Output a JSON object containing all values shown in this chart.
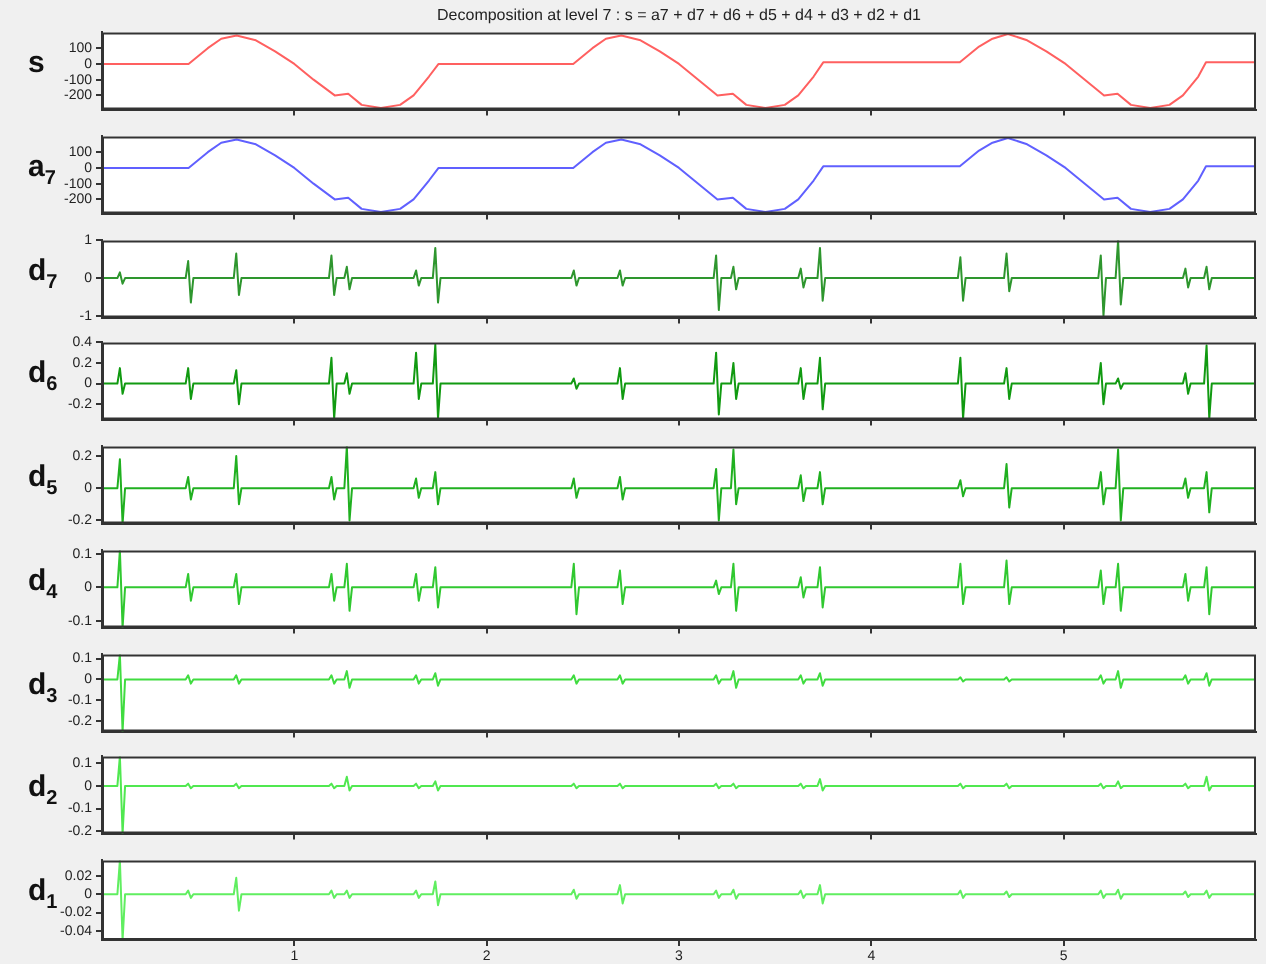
{
  "chart_data": [
    {
      "type": "line",
      "title": "Decomposition at level 7 : s = a7 + d7 + d6 + d5 + d4 + d3 + d2 + d1",
      "ylabel": "s",
      "color": "#ff6060",
      "tick_labels": "y",
      "xlim": [
        0,
        6
      ],
      "xticks": [
        1,
        2,
        3,
        4,
        5
      ],
      "ylim": [
        -290,
        200
      ],
      "yticks": [
        -200,
        -100,
        0,
        100
      ],
      "x": [
        0,
        0.45,
        0.55,
        0.62,
        0.7,
        0.8,
        0.9,
        1.0,
        1.1,
        1.21,
        1.28,
        1.35,
        1.45,
        1.55,
        1.62,
        1.7,
        1.75,
        2.45,
        2.55,
        2.62,
        2.7,
        2.8,
        2.9,
        3.0,
        3.1,
        3.2,
        3.28,
        3.35,
        3.45,
        3.55,
        3.62,
        3.7,
        3.75,
        4.46,
        4.56,
        4.63,
        4.71,
        4.81,
        4.91,
        5.01,
        5.11,
        5.21,
        5.28,
        5.35,
        5.45,
        5.55,
        5.62,
        5.7,
        5.74,
        6
      ],
      "values": [
        0,
        0,
        100,
        160,
        180,
        150,
        80,
        0,
        -100,
        -200,
        -190,
        -260,
        -280,
        -260,
        -200,
        -80,
        0,
        0,
        100,
        160,
        180,
        150,
        80,
        0,
        -100,
        -200,
        -190,
        -260,
        -280,
        -260,
        -200,
        -80,
        10,
        10,
        110,
        160,
        190,
        150,
        80,
        0,
        -100,
        -200,
        -190,
        -260,
        -280,
        -260,
        -200,
        -80,
        10,
        10
      ]
    },
    {
      "type": "line",
      "ylabel": "a$_{7}$",
      "color": "#6060ff",
      "tick_labels": "y",
      "xlim": [
        0,
        6
      ],
      "xticks": [
        1,
        2,
        3,
        4,
        5
      ],
      "ylim": [
        -290,
        200
      ],
      "yticks": [
        -200,
        -100,
        0,
        100
      ],
      "x": [
        0,
        0.45,
        0.55,
        0.62,
        0.7,
        0.8,
        0.9,
        1.0,
        1.1,
        1.21,
        1.28,
        1.35,
        1.45,
        1.55,
        1.62,
        1.7,
        1.75,
        2.45,
        2.55,
        2.62,
        2.7,
        2.8,
        2.9,
        3.0,
        3.1,
        3.2,
        3.28,
        3.35,
        3.45,
        3.55,
        3.62,
        3.7,
        3.75,
        4.46,
        4.56,
        4.63,
        4.71,
        4.81,
        4.91,
        5.01,
        5.11,
        5.21,
        5.28,
        5.35,
        5.45,
        5.55,
        5.62,
        5.7,
        5.74,
        6
      ],
      "values": [
        0,
        0,
        100,
        160,
        180,
        150,
        80,
        0,
        -100,
        -200,
        -190,
        -260,
        -280,
        -260,
        -200,
        -80,
        0,
        0,
        100,
        160,
        180,
        150,
        80,
        0,
        -100,
        -200,
        -190,
        -260,
        -280,
        -260,
        -200,
        -80,
        10,
        10,
        110,
        160,
        190,
        150,
        80,
        0,
        -100,
        -200,
        -190,
        -260,
        -280,
        -260,
        -200,
        -80,
        10,
        10
      ]
    },
    {
      "type": "line",
      "ylabel": "d$_{7}$",
      "color": "#2e962e",
      "tick_labels": "y",
      "xlim": [
        0,
        6
      ],
      "xticks": [
        1,
        2,
        3,
        4,
        5
      ],
      "ylim": [
        -1.05,
        1
      ],
      "yticks": [
        -1,
        0,
        1
      ],
      "x": [
        0,
        0.08,
        0.093,
        0.107,
        0.12,
        0.435,
        0.448,
        0.462,
        0.475,
        0.685,
        0.698,
        0.712,
        0.725,
        1.18,
        1.193,
        1.207,
        1.22,
        1.26,
        1.273,
        1.287,
        1.3,
        1.62,
        1.633,
        1.647,
        1.66,
        1.72,
        1.733,
        1.747,
        1.76,
        2.44,
        2.453,
        2.467,
        2.48,
        2.68,
        2.693,
        2.707,
        2.72,
        3.18,
        3.193,
        3.207,
        3.22,
        3.27,
        3.283,
        3.297,
        3.31,
        3.62,
        3.633,
        3.647,
        3.66,
        3.72,
        3.733,
        3.747,
        3.76,
        4.45,
        4.463,
        4.477,
        4.49,
        4.69,
        4.703,
        4.717,
        4.73,
        5.18,
        5.193,
        5.207,
        5.22,
        5.27,
        5.283,
        5.297,
        5.31,
        5.62,
        5.633,
        5.647,
        5.66,
        5.73,
        5.743,
        5.757,
        5.77,
        6
      ],
      "values": [
        0,
        0,
        0.15,
        -0.15,
        0,
        0,
        0.45,
        -0.65,
        0,
        0,
        0.65,
        -0.45,
        0,
        0,
        0.6,
        -0.45,
        0,
        0,
        0.3,
        -0.3,
        0,
        0,
        0.2,
        -0.2,
        0,
        0,
        0.8,
        -0.65,
        0,
        0,
        0.2,
        -0.2,
        0,
        0,
        0.2,
        -0.2,
        0,
        0,
        0.6,
        -0.85,
        0,
        0,
        0.3,
        -0.3,
        0,
        0,
        0.25,
        -0.25,
        0,
        0,
        0.8,
        -0.6,
        0,
        0,
        0.55,
        -0.6,
        0,
        0,
        0.65,
        -0.35,
        0,
        0,
        0.6,
        -1.0,
        0,
        0,
        1.0,
        -0.7,
        0,
        0,
        0.25,
        -0.25,
        0,
        0,
        0.3,
        -0.3,
        0,
        0
      ]
    },
    {
      "type": "line",
      "ylabel": "d$_{6}$",
      "color": "#119a11",
      "tick_labels": "y",
      "xlim": [
        0,
        6
      ],
      "xticks": [
        1,
        2,
        3,
        4,
        5
      ],
      "ylim": [
        -0.35,
        0.4
      ],
      "yticks": [
        -0.2,
        0,
        0.2,
        0.4
      ],
      "x": [
        0,
        0.08,
        0.093,
        0.107,
        0.12,
        0.435,
        0.448,
        0.462,
        0.475,
        0.685,
        0.698,
        0.712,
        0.725,
        1.18,
        1.193,
        1.207,
        1.22,
        1.26,
        1.273,
        1.287,
        1.3,
        1.62,
        1.633,
        1.647,
        1.66,
        1.72,
        1.733,
        1.747,
        1.76,
        2.44,
        2.453,
        2.467,
        2.48,
        2.68,
        2.693,
        2.707,
        2.72,
        3.18,
        3.193,
        3.207,
        3.22,
        3.27,
        3.283,
        3.297,
        3.31,
        3.62,
        3.633,
        3.647,
        3.66,
        3.72,
        3.733,
        3.747,
        3.76,
        4.45,
        4.463,
        4.477,
        4.49,
        4.69,
        4.703,
        4.717,
        4.73,
        5.18,
        5.193,
        5.207,
        5.22,
        5.27,
        5.283,
        5.297,
        5.31,
        5.62,
        5.633,
        5.647,
        5.66,
        5.73,
        5.743,
        5.757,
        5.77,
        6
      ],
      "values": [
        0,
        0,
        0.15,
        -0.1,
        0,
        0,
        0.15,
        -0.15,
        0,
        0,
        0.13,
        -0.2,
        0,
        0,
        0.25,
        -0.34,
        0,
        0,
        0.1,
        -0.1,
        0,
        0,
        0.3,
        -0.15,
        0,
        0,
        0.38,
        -0.34,
        0,
        0,
        0.05,
        -0.05,
        0,
        0,
        0.15,
        -0.15,
        0,
        0,
        0.3,
        -0.3,
        0,
        0,
        0.2,
        -0.15,
        0,
        0,
        0.15,
        -0.15,
        0,
        0,
        0.25,
        -0.25,
        0,
        0,
        0.25,
        -0.34,
        0,
        0,
        0.15,
        -0.15,
        0,
        0,
        0.2,
        -0.2,
        0,
        0,
        0.05,
        -0.05,
        0,
        0,
        0.1,
        -0.1,
        0,
        0,
        0.37,
        -0.34,
        0,
        0
      ]
    },
    {
      "type": "line",
      "ylabel": "d$_{5}$",
      "color": "#20b020",
      "tick_labels": "y",
      "xlim": [
        0,
        6
      ],
      "xticks": [
        1,
        2,
        3,
        4,
        5
      ],
      "ylim": [
        -0.22,
        0.26
      ],
      "yticks": [
        -0.2,
        0,
        0.2
      ],
      "x": [
        0,
        0.08,
        0.093,
        0.107,
        0.12,
        0.435,
        0.448,
        0.462,
        0.475,
        0.685,
        0.698,
        0.712,
        0.725,
        1.18,
        1.193,
        1.207,
        1.22,
        1.26,
        1.273,
        1.287,
        1.3,
        1.62,
        1.633,
        1.647,
        1.66,
        1.72,
        1.733,
        1.747,
        1.76,
        2.44,
        2.453,
        2.467,
        2.48,
        2.68,
        2.693,
        2.707,
        2.72,
        3.18,
        3.193,
        3.207,
        3.22,
        3.27,
        3.283,
        3.297,
        3.31,
        3.62,
        3.633,
        3.647,
        3.66,
        3.72,
        3.733,
        3.747,
        3.76,
        4.45,
        4.463,
        4.477,
        4.49,
        4.69,
        4.703,
        4.717,
        4.73,
        5.18,
        5.193,
        5.207,
        5.22,
        5.27,
        5.283,
        5.297,
        5.31,
        5.62,
        5.633,
        5.647,
        5.66,
        5.73,
        5.743,
        5.757,
        5.77,
        6
      ],
      "values": [
        0,
        0,
        0.18,
        -0.22,
        0,
        0,
        0.07,
        -0.07,
        0,
        0,
        0.2,
        -0.1,
        0,
        0,
        0.07,
        -0.07,
        0,
        0,
        0.26,
        -0.2,
        0,
        0,
        0.06,
        -0.06,
        0,
        0,
        0.1,
        -0.1,
        0,
        0,
        0.06,
        -0.06,
        0,
        0,
        0.07,
        -0.07,
        0,
        0,
        0.12,
        -0.2,
        0,
        0,
        0.24,
        -0.1,
        0,
        0,
        0.08,
        -0.08,
        0,
        0,
        0.1,
        -0.1,
        0,
        0,
        0.05,
        -0.05,
        0,
        0,
        0.15,
        -0.12,
        0,
        0,
        0.1,
        -0.1,
        0,
        0,
        0.24,
        -0.2,
        0,
        0,
        0.06,
        -0.06,
        0,
        0,
        0.1,
        -0.15,
        0,
        0
      ]
    },
    {
      "type": "line",
      "ylabel": "d$_{4}$",
      "color": "#30c830",
      "tick_labels": "y",
      "xlim": [
        0,
        6
      ],
      "xticks": [
        1,
        2,
        3,
        4,
        5
      ],
      "ylim": [
        -0.12,
        0.11
      ],
      "yticks": [
        -0.1,
        0,
        0.1
      ],
      "x": [
        0,
        0.08,
        0.093,
        0.107,
        0.12,
        0.435,
        0.448,
        0.462,
        0.475,
        0.685,
        0.698,
        0.712,
        0.725,
        1.18,
        1.193,
        1.207,
        1.22,
        1.26,
        1.273,
        1.287,
        1.3,
        1.62,
        1.633,
        1.647,
        1.66,
        1.72,
        1.733,
        1.747,
        1.76,
        2.44,
        2.453,
        2.467,
        2.48,
        2.68,
        2.693,
        2.707,
        2.72,
        3.18,
        3.193,
        3.207,
        3.22,
        3.27,
        3.283,
        3.297,
        3.31,
        3.62,
        3.633,
        3.647,
        3.66,
        3.72,
        3.733,
        3.747,
        3.76,
        4.45,
        4.463,
        4.477,
        4.49,
        4.69,
        4.703,
        4.717,
        4.73,
        5.18,
        5.193,
        5.207,
        5.22,
        5.27,
        5.283,
        5.297,
        5.31,
        5.62,
        5.633,
        5.647,
        5.66,
        5.73,
        5.743,
        5.757,
        5.77,
        6
      ],
      "values": [
        0,
        0,
        0.11,
        -0.12,
        0,
        0,
        0.04,
        -0.04,
        0,
        0,
        0.04,
        -0.05,
        0,
        0,
        0.04,
        -0.04,
        0,
        0,
        0.07,
        -0.07,
        0,
        0,
        0.04,
        -0.04,
        0,
        0,
        0.06,
        -0.06,
        0,
        0,
        0.07,
        -0.08,
        0,
        0,
        0.05,
        -0.05,
        0,
        0,
        0.02,
        -0.02,
        0,
        0,
        0.07,
        -0.07,
        0,
        0,
        0.03,
        -0.03,
        0,
        0,
        0.06,
        -0.06,
        0,
        0,
        0.07,
        -0.05,
        0,
        0,
        0.08,
        -0.05,
        0,
        0,
        0.05,
        -0.05,
        0,
        0,
        0.07,
        -0.07,
        0,
        0,
        0.04,
        -0.04,
        0,
        0,
        0.06,
        -0.08,
        0,
        0
      ]
    },
    {
      "type": "line",
      "ylabel": "d$_{3}$",
      "color": "#40dc40",
      "tick_labels": "y",
      "xlim": [
        0,
        6
      ],
      "xticks": [
        1,
        2,
        3,
        4,
        5
      ],
      "ylim": [
        -0.25,
        0.12
      ],
      "yticks": [
        -0.2,
        -0.1,
        0,
        0.1
      ],
      "x": [
        0,
        0.08,
        0.093,
        0.107,
        0.12,
        0.435,
        0.448,
        0.462,
        0.475,
        0.685,
        0.698,
        0.712,
        0.725,
        1.18,
        1.193,
        1.207,
        1.22,
        1.26,
        1.273,
        1.287,
        1.3,
        1.62,
        1.633,
        1.647,
        1.66,
        1.72,
        1.733,
        1.747,
        1.76,
        2.44,
        2.453,
        2.467,
        2.48,
        2.68,
        2.693,
        2.707,
        2.72,
        3.18,
        3.193,
        3.207,
        3.22,
        3.27,
        3.283,
        3.297,
        3.31,
        3.62,
        3.633,
        3.647,
        3.66,
        3.72,
        3.733,
        3.747,
        3.76,
        4.45,
        4.463,
        4.477,
        4.49,
        4.69,
        4.703,
        4.717,
        4.73,
        5.18,
        5.193,
        5.207,
        5.22,
        5.27,
        5.283,
        5.297,
        5.31,
        5.62,
        5.633,
        5.647,
        5.66,
        5.73,
        5.743,
        5.757,
        5.77,
        6
      ],
      "values": [
        0,
        0,
        0.12,
        -0.25,
        0,
        0,
        0.02,
        -0.02,
        0,
        0,
        0.02,
        -0.02,
        0,
        0,
        0.02,
        -0.02,
        0,
        0,
        0.04,
        -0.04,
        0,
        0,
        0.02,
        -0.02,
        0,
        0,
        0.03,
        -0.03,
        0,
        0,
        0.02,
        -0.02,
        0,
        0,
        0.02,
        -0.02,
        0,
        0,
        0.02,
        -0.02,
        0,
        0,
        0.04,
        -0.04,
        0,
        0,
        0.02,
        -0.02,
        0,
        0,
        0.03,
        -0.03,
        0,
        0,
        0.01,
        -0.01,
        0,
        0,
        0.01,
        -0.01,
        0,
        0,
        0.02,
        -0.02,
        0,
        0,
        0.04,
        -0.04,
        0,
        0,
        0.02,
        -0.02,
        0,
        0,
        0.03,
        -0.03,
        0,
        0
      ]
    },
    {
      "type": "line",
      "ylabel": "d$_{2}$",
      "color": "#50e850",
      "tick_labels": "y",
      "xlim": [
        0,
        6
      ],
      "xticks": [
        1,
        2,
        3,
        4,
        5
      ],
      "ylim": [
        -0.21,
        0.13
      ],
      "yticks": [
        -0.2,
        -0.1,
        0,
        0.1
      ],
      "x": [
        0,
        0.08,
        0.093,
        0.107,
        0.12,
        0.435,
        0.448,
        0.462,
        0.475,
        0.685,
        0.698,
        0.712,
        0.725,
        1.18,
        1.193,
        1.207,
        1.22,
        1.26,
        1.273,
        1.287,
        1.3,
        1.62,
        1.633,
        1.647,
        1.66,
        1.72,
        1.733,
        1.747,
        1.76,
        2.44,
        2.453,
        2.467,
        2.48,
        2.68,
        2.693,
        2.707,
        2.72,
        3.18,
        3.193,
        3.207,
        3.22,
        3.27,
        3.283,
        3.297,
        3.31,
        3.62,
        3.633,
        3.647,
        3.66,
        3.72,
        3.733,
        3.747,
        3.76,
        4.45,
        4.463,
        4.477,
        4.49,
        4.69,
        4.703,
        4.717,
        4.73,
        5.18,
        5.193,
        5.207,
        5.22,
        5.27,
        5.283,
        5.297,
        5.31,
        5.62,
        5.633,
        5.647,
        5.66,
        5.73,
        5.743,
        5.757,
        5.77,
        6
      ],
      "values": [
        0,
        0,
        0.13,
        -0.21,
        0,
        0,
        0.01,
        -0.01,
        0,
        0,
        0.01,
        -0.01,
        0,
        0,
        0.01,
        -0.01,
        0,
        0,
        0.04,
        -0.02,
        0,
        0,
        0.01,
        -0.01,
        0,
        0,
        0.02,
        -0.02,
        0,
        0,
        0.01,
        -0.01,
        0,
        0,
        0.01,
        -0.01,
        0,
        0,
        0.01,
        -0.01,
        0,
        0,
        0.01,
        -0.01,
        0,
        0,
        0.01,
        -0.01,
        0,
        0,
        0.03,
        -0.02,
        0,
        0,
        0.01,
        -0.01,
        0,
        0,
        0.01,
        -0.01,
        0,
        0,
        0.01,
        -0.01,
        0,
        0,
        0.02,
        -0.01,
        0,
        0,
        0.01,
        -0.01,
        0,
        0,
        0.04,
        -0.02,
        0,
        0
      ]
    },
    {
      "type": "line",
      "ylabel": "d$_{1}$",
      "color": "#60ee60",
      "xlim": [
        0,
        6
      ],
      "xticks": [
        1,
        2,
        3,
        4,
        5
      ],
      "ylim": [
        -0.05,
        0.037
      ],
      "yticks": [
        -0.04,
        -0.02,
        0,
        0.02
      ],
      "x": [
        0,
        0.08,
        0.093,
        0.107,
        0.12,
        0.435,
        0.448,
        0.462,
        0.475,
        0.685,
        0.698,
        0.712,
        0.725,
        1.18,
        1.193,
        1.207,
        1.22,
        1.26,
        1.273,
        1.287,
        1.3,
        1.62,
        1.633,
        1.647,
        1.66,
        1.72,
        1.733,
        1.747,
        1.76,
        2.44,
        2.453,
        2.467,
        2.48,
        2.68,
        2.693,
        2.707,
        2.72,
        3.18,
        3.193,
        3.207,
        3.22,
        3.27,
        3.283,
        3.297,
        3.31,
        3.62,
        3.633,
        3.647,
        3.66,
        3.72,
        3.733,
        3.747,
        3.76,
        4.45,
        4.463,
        4.477,
        4.49,
        4.69,
        4.703,
        4.717,
        4.73,
        5.18,
        5.193,
        5.207,
        5.22,
        5.27,
        5.283,
        5.297,
        5.31,
        5.62,
        5.633,
        5.647,
        5.66,
        5.73,
        5.743,
        5.757,
        5.77,
        6
      ],
      "values": [
        0,
        0,
        0.037,
        -0.05,
        0,
        0,
        0.004,
        -0.004,
        0,
        0,
        0.018,
        -0.018,
        0,
        0,
        0.004,
        -0.004,
        0,
        0,
        0.004,
        -0.004,
        0,
        0,
        0.004,
        -0.004,
        0,
        0,
        0.014,
        -0.012,
        0,
        0,
        0.005,
        -0.005,
        0,
        0,
        0.01,
        -0.01,
        0,
        0,
        0.004,
        -0.004,
        0,
        0,
        0.005,
        -0.005,
        0,
        0,
        0.004,
        -0.004,
        0,
        0,
        0.01,
        -0.01,
        0,
        0,
        0.004,
        -0.004,
        0,
        0,
        0.003,
        -0.003,
        0,
        0,
        0.004,
        -0.004,
        0,
        0,
        0.005,
        -0.005,
        0,
        0,
        0.003,
        -0.003,
        0,
        0,
        0.004,
        -0.004,
        0,
        0
      ]
    }
  ]
}
